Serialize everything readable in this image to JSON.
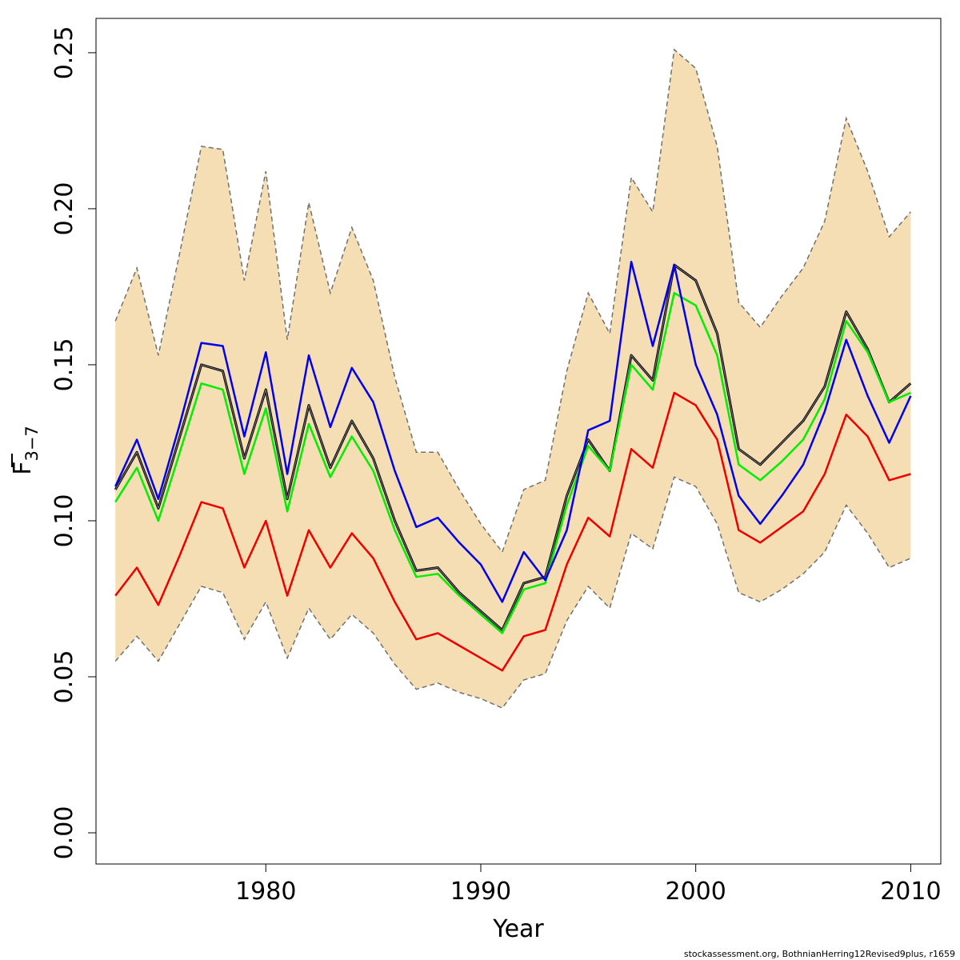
{
  "chart_data": {
    "type": "line",
    "title": "",
    "xlabel": "Year",
    "ylabel_main": "F",
    "ylabel_sub": "3−7",
    "xlim": [
      1972.1,
      2011.4
    ],
    "ylim": [
      -0.01,
      0.261
    ],
    "x_ticks": [
      {
        "value": 1980,
        "label": "1980"
      },
      {
        "value": 1990,
        "label": "1990"
      },
      {
        "value": 2000,
        "label": "2000"
      },
      {
        "value": 2010,
        "label": "2010"
      }
    ],
    "y_ticks": [
      {
        "value": 0.0,
        "label": "0.00"
      },
      {
        "value": 0.05,
        "label": "0.05"
      },
      {
        "value": 0.1,
        "label": "0.10"
      },
      {
        "value": 0.15,
        "label": "0.15"
      },
      {
        "value": 0.2,
        "label": "0.20"
      },
      {
        "value": 0.25,
        "label": "0.25"
      }
    ],
    "x": [
      1973,
      1974,
      1975,
      1976,
      1977,
      1978,
      1979,
      1980,
      1981,
      1982,
      1983,
      1984,
      1985,
      1986,
      1987,
      1988,
      1989,
      1990,
      1991,
      1992,
      1993,
      1994,
      1995,
      1996,
      1997,
      1998,
      1999,
      2000,
      2001,
      2002,
      2003,
      2004,
      2005,
      2006,
      2007,
      2008,
      2009,
      2010
    ],
    "band": {
      "name": "Confidence interval",
      "fill": "#f5deb3",
      "edge": "#707070",
      "upper": [
        0.164,
        0.181,
        0.153,
        0.186,
        0.22,
        0.219,
        0.177,
        0.212,
        0.158,
        0.202,
        0.173,
        0.194,
        0.177,
        0.146,
        0.122,
        0.122,
        0.11,
        0.099,
        0.09,
        0.11,
        0.113,
        0.148,
        0.173,
        0.16,
        0.21,
        0.199,
        0.251,
        0.245,
        0.22,
        0.17,
        0.162,
        0.172,
        0.181,
        0.196,
        0.229,
        0.212,
        0.191,
        0.199
      ],
      "lower": [
        0.055,
        0.063,
        0.055,
        0.067,
        0.079,
        0.077,
        0.062,
        0.074,
        0.056,
        0.072,
        0.062,
        0.07,
        0.064,
        0.054,
        0.046,
        0.048,
        0.045,
        0.043,
        0.04,
        0.049,
        0.051,
        0.068,
        0.079,
        0.072,
        0.096,
        0.091,
        0.114,
        0.111,
        0.099,
        0.077,
        0.074,
        0.078,
        0.083,
        0.09,
        0.105,
        0.096,
        0.085,
        0.088
      ]
    },
    "series": [
      {
        "name": "Estimate",
        "color": "#000000",
        "width": 3,
        "values": [
          0.11,
          0.122,
          0.104,
          0.127,
          0.15,
          0.148,
          0.12,
          0.142,
          0.107,
          0.137,
          0.117,
          0.132,
          0.12,
          0.1,
          0.084,
          0.085,
          0.077,
          0.071,
          0.065,
          0.08,
          0.082,
          0.108,
          0.126,
          0.116,
          0.153,
          0.145,
          0.182,
          0.177,
          0.16,
          0.123,
          0.118,
          0.125,
          0.132,
          0.143,
          0.167,
          0.155,
          0.138,
          0.144
        ]
      },
      {
        "name": "Estimate inner",
        "color": "#808080",
        "width": 1,
        "values": [
          0.11,
          0.122,
          0.104,
          0.127,
          0.15,
          0.148,
          0.12,
          0.142,
          0.107,
          0.137,
          0.117,
          0.132,
          0.12,
          0.1,
          0.084,
          0.085,
          0.077,
          0.071,
          0.065,
          0.08,
          0.082,
          0.108,
          0.126,
          0.116,
          0.153,
          0.145,
          0.182,
          0.177,
          0.16,
          0.123,
          0.118,
          0.125,
          0.132,
          0.143,
          0.167,
          0.155,
          0.138,
          0.144
        ]
      },
      {
        "name": "Green run",
        "color": "#00ee00",
        "width": 2.5,
        "values": [
          0.106,
          0.117,
          0.1,
          0.122,
          0.144,
          0.142,
          0.115,
          0.136,
          0.103,
          0.131,
          0.114,
          0.127,
          0.116,
          0.097,
          0.082,
          0.083,
          0.076,
          0.07,
          0.064,
          0.078,
          0.08,
          0.105,
          0.124,
          0.116,
          0.15,
          0.142,
          0.173,
          0.169,
          0.153,
          0.118,
          0.113,
          0.119,
          0.126,
          0.139,
          0.164,
          0.154,
          0.138,
          0.141
        ]
      },
      {
        "name": "Blue run",
        "color": "#0000ee",
        "width": 2.5,
        "values": [
          0.111,
          0.126,
          0.107,
          0.131,
          0.157,
          0.156,
          0.127,
          0.154,
          0.115,
          0.153,
          0.13,
          0.149,
          0.138,
          0.116,
          0.098,
          0.101,
          0.093,
          0.086,
          0.074,
          0.09,
          0.081,
          0.097,
          0.129,
          0.132,
          0.183,
          0.156,
          0.182,
          0.15,
          0.134,
          0.108,
          0.099,
          0.108,
          0.118,
          0.135,
          0.158,
          0.14,
          0.125,
          0.14
        ]
      },
      {
        "name": "Red run",
        "color": "#ee0000",
        "width": 2.5,
        "values": [
          0.076,
          0.085,
          0.073,
          0.089,
          0.106,
          0.104,
          0.085,
          0.1,
          0.076,
          0.097,
          0.085,
          0.096,
          0.088,
          0.074,
          0.062,
          0.064,
          0.06,
          0.056,
          0.052,
          0.063,
          0.065,
          0.086,
          0.101,
          0.095,
          0.123,
          0.117,
          0.141,
          0.137,
          0.126,
          0.097,
          0.093,
          0.098,
          0.103,
          0.115,
          0.134,
          0.127,
          0.113,
          0.115
        ]
      }
    ]
  },
  "footer": {
    "note": "stockassessment.org, BothnianHerring12Revised9plus, r1659"
  }
}
